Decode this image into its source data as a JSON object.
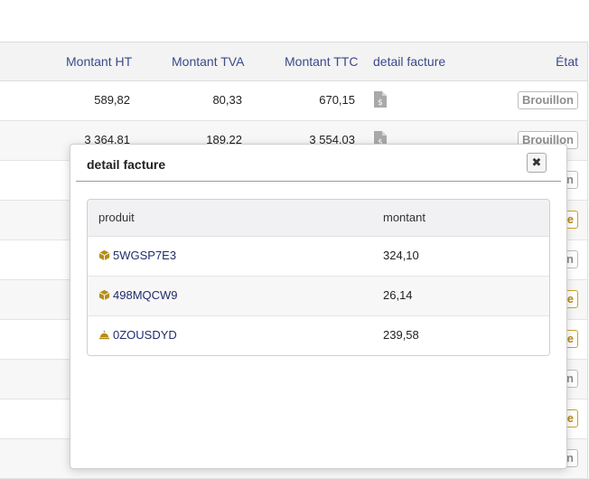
{
  "table": {
    "headers": {
      "montant_ht": "Montant HT",
      "montant_tva": "Montant TVA",
      "montant_ttc": "Montant TTC",
      "detail": "detail facture",
      "etat": "État"
    },
    "rows": [
      {
        "ht": "589,82",
        "tva": "80,33",
        "ttc": "670,15",
        "state": "Brouillon"
      },
      {
        "ht": "3 364,81",
        "tva": "189,22",
        "ttc": "3 554,03",
        "state": "Brouillon"
      },
      {
        "state": "n"
      },
      {
        "state": "e"
      },
      {
        "state": "n"
      },
      {
        "state": "e"
      },
      {
        "state": "e"
      },
      {
        "state": "n"
      },
      {
        "state": "e"
      },
      {
        "state": "n"
      }
    ]
  },
  "modal": {
    "title": "detail facture",
    "close_label": "✖",
    "columns": {
      "produit": "produit",
      "montant": "montant"
    },
    "items": [
      {
        "code": "5WGSP7E3",
        "amount": "324,10",
        "icon": "box-icon"
      },
      {
        "code": "498MQCW9",
        "amount": "26,14",
        "icon": "box-icon"
      },
      {
        "code": "0ZOUSDYD",
        "amount": "239,58",
        "icon": "service-bell-icon"
      }
    ]
  },
  "colors": {
    "accent": "#3b4a8a",
    "link": "#1f2d6b",
    "badge_gold": "#b58e14",
    "icon_gold": "#b58e14"
  }
}
